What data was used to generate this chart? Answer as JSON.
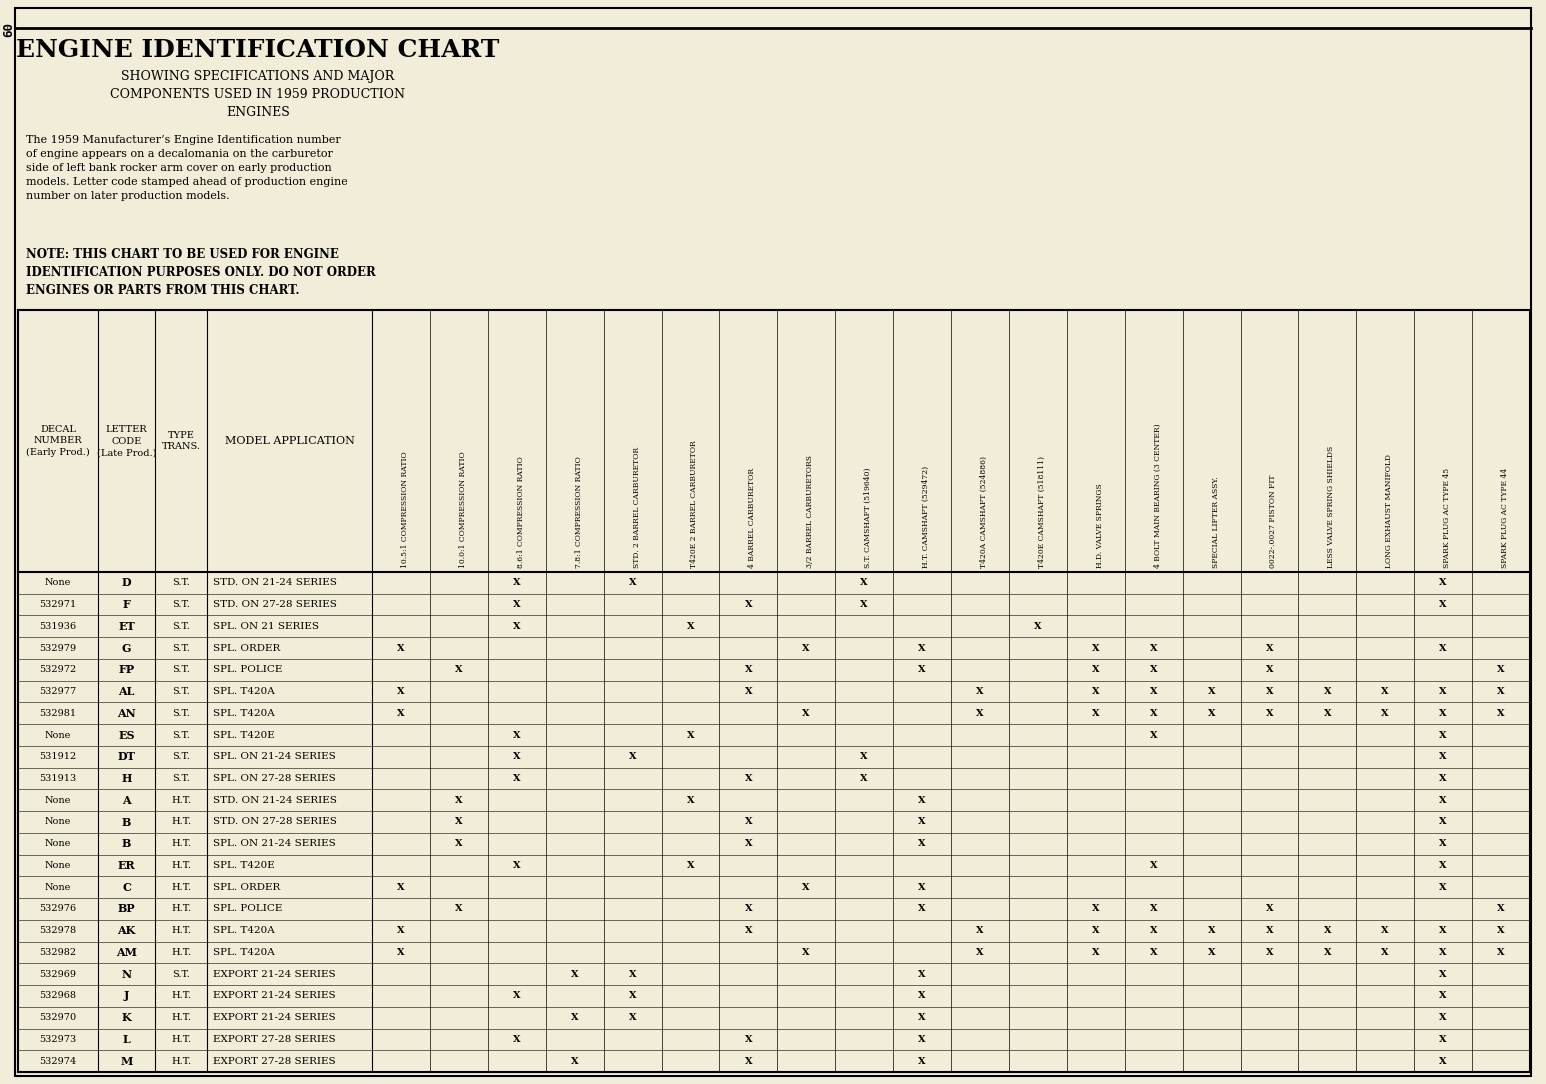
{
  "title": "ENGINE IDENTIFICATION CHART",
  "subtitle": "SHOWING SPECIFICATIONS AND MAJOR\nCOMPONENTS USED IN 1959 PRODUCTION\nENGINES",
  "body_text1": "The 1959 Manufacturer’s Engine Identification number\nof engine appears on a decalomania on the carburetor\nside of left bank rocker arm cover on early production\nmodels. Letter code stamped ahead of production engine\nnumber on later production models.",
  "body_text2": "NOTE: THIS CHART TO BE USED FOR ENGINE\nIDENTIFICATION PURPOSES ONLY. DO NOT ORDER\nENGINES OR PARTS FROM THIS CHART.",
  "col_headers": [
    "10.5:1 COMPRESSION RATIO",
    "10.0:1 COMPRESSION RATIO",
    "8.6:1 COMPRESSION RATIO",
    "7.8:1 COMPRESSION RATIO",
    "STD. 2 BARREL CARBURETOR",
    "T420E 2 BARREL CARBURETOR",
    "4 BARREL CARBURETOR",
    "3/2 BARREL CARBURETORS",
    "S.T. CAMSHAFT (519640)",
    "H.T. CAMSHAFT (529472)",
    "T420A CAMSHAFT (524886)",
    "T420E CAMSHAFT (518111)",
    "H.D. VALVE SPRINGS",
    "4 BOLT MAIN BEARING (3 CENTER)",
    "SPECIAL LIFTER ASSY.",
    "0022-.0027 PISTON FIT",
    "LESS VALVE SPRING SHIELDS",
    "LONG EXHAUST MANIFOLD",
    "SPARK PLUG AC TYPE 45",
    "SPARK PLUG AC TYPE 44"
  ],
  "rows": [
    [
      "None",
      "D",
      "S.T.",
      "STD. ON 21-24 SERIES",
      0,
      0,
      1,
      0,
      1,
      0,
      0,
      0,
      1,
      0,
      0,
      0,
      0,
      0,
      0,
      0,
      0,
      0,
      1,
      0
    ],
    [
      "532971",
      "F",
      "S.T.",
      "STD. ON 27-28 SERIES",
      0,
      0,
      1,
      0,
      0,
      0,
      1,
      0,
      1,
      0,
      0,
      0,
      0,
      0,
      0,
      0,
      0,
      0,
      1,
      0
    ],
    [
      "531936",
      "ET",
      "S.T.",
      "SPL. ON 21 SERIES",
      0,
      0,
      1,
      0,
      0,
      1,
      0,
      0,
      0,
      0,
      0,
      1,
      0,
      0,
      0,
      0,
      0,
      0,
      0,
      0
    ],
    [
      "532979",
      "G",
      "S.T.",
      "SPL. ORDER",
      1,
      0,
      0,
      0,
      0,
      0,
      0,
      1,
      0,
      1,
      0,
      0,
      1,
      1,
      0,
      1,
      0,
      0,
      1,
      0
    ],
    [
      "532972",
      "FP",
      "S.T.",
      "SPL. POLICE",
      0,
      1,
      0,
      0,
      0,
      0,
      1,
      0,
      0,
      1,
      0,
      0,
      1,
      1,
      0,
      1,
      0,
      0,
      0,
      1
    ],
    [
      "532977",
      "AL",
      "S.T.",
      "SPL. T420A",
      1,
      0,
      0,
      0,
      0,
      0,
      1,
      0,
      0,
      0,
      1,
      0,
      1,
      1,
      1,
      1,
      1,
      1,
      1,
      1
    ],
    [
      "532981",
      "AN",
      "S.T.",
      "SPL. T420A",
      1,
      0,
      0,
      0,
      0,
      0,
      0,
      1,
      0,
      0,
      1,
      0,
      1,
      1,
      1,
      1,
      1,
      1,
      1,
      1
    ],
    [
      "None",
      "ES",
      "S.T.",
      "SPL. T420E",
      0,
      0,
      1,
      0,
      0,
      1,
      0,
      0,
      0,
      0,
      0,
      0,
      0,
      1,
      0,
      0,
      0,
      0,
      1,
      0
    ],
    [
      "531912",
      "DT",
      "S.T.",
      "SPL. ON 21-24 SERIES",
      0,
      0,
      1,
      0,
      1,
      0,
      0,
      0,
      1,
      0,
      0,
      0,
      0,
      0,
      0,
      0,
      0,
      0,
      1,
      0
    ],
    [
      "531913",
      "H",
      "S.T.",
      "SPL. ON 27-28 SERIES",
      0,
      0,
      1,
      0,
      0,
      0,
      1,
      0,
      1,
      0,
      0,
      0,
      0,
      0,
      0,
      0,
      0,
      0,
      1,
      0
    ],
    [
      "None",
      "A",
      "H.T.",
      "STD. ON 21-24 SERIES",
      0,
      1,
      0,
      0,
      0,
      1,
      0,
      0,
      0,
      1,
      0,
      0,
      0,
      0,
      0,
      0,
      0,
      0,
      1,
      0
    ],
    [
      "None",
      "B",
      "H.T.",
      "STD. ON 27-28 SERIES",
      0,
      1,
      0,
      0,
      0,
      0,
      1,
      0,
      0,
      1,
      0,
      0,
      0,
      0,
      0,
      0,
      0,
      0,
      1,
      0
    ],
    [
      "None",
      "B",
      "H.T.",
      "SPL. ON 21-24 SERIES",
      0,
      1,
      0,
      0,
      0,
      0,
      1,
      0,
      0,
      1,
      0,
      0,
      0,
      0,
      0,
      0,
      0,
      0,
      1,
      0
    ],
    [
      "None",
      "ER",
      "H.T.",
      "SPL. T420E",
      0,
      0,
      1,
      0,
      0,
      1,
      0,
      0,
      0,
      0,
      0,
      0,
      0,
      1,
      0,
      0,
      0,
      0,
      1,
      0
    ],
    [
      "None",
      "C",
      "H.T.",
      "SPL. ORDER",
      1,
      0,
      0,
      0,
      0,
      0,
      0,
      1,
      0,
      1,
      0,
      0,
      0,
      0,
      0,
      0,
      0,
      0,
      1,
      0
    ],
    [
      "532976",
      "BP",
      "H.T.",
      "SPL. POLICE",
      0,
      1,
      0,
      0,
      0,
      0,
      1,
      0,
      0,
      1,
      0,
      0,
      1,
      1,
      0,
      1,
      0,
      0,
      0,
      1
    ],
    [
      "532978",
      "AK",
      "H.T.",
      "SPL. T420A",
      1,
      0,
      0,
      0,
      0,
      0,
      1,
      0,
      0,
      0,
      1,
      0,
      1,
      1,
      1,
      1,
      1,
      1,
      1,
      1
    ],
    [
      "532982",
      "AM",
      "H.T.",
      "SPL. T420A",
      1,
      0,
      0,
      0,
      0,
      0,
      0,
      1,
      0,
      0,
      1,
      0,
      1,
      1,
      1,
      1,
      1,
      1,
      1,
      1
    ],
    [
      "532969",
      "N",
      "S.T.",
      "EXPORT 21-24 SERIES",
      0,
      0,
      0,
      1,
      1,
      0,
      0,
      0,
      0,
      1,
      0,
      0,
      0,
      0,
      0,
      0,
      0,
      0,
      1,
      0
    ],
    [
      "532968",
      "J",
      "H.T.",
      "EXPORT 21-24 SERIES",
      0,
      0,
      1,
      0,
      1,
      0,
      0,
      0,
      0,
      1,
      0,
      0,
      0,
      0,
      0,
      0,
      0,
      0,
      1,
      0
    ],
    [
      "532970",
      "K",
      "H.T.",
      "EXPORT 21-24 SERIES",
      0,
      0,
      0,
      1,
      1,
      0,
      0,
      0,
      0,
      1,
      0,
      0,
      0,
      0,
      0,
      0,
      0,
      0,
      1,
      0
    ],
    [
      "532973",
      "L",
      "H.T.",
      "EXPORT 27-28 SERIES",
      0,
      0,
      1,
      0,
      0,
      0,
      1,
      0,
      0,
      1,
      0,
      0,
      0,
      0,
      0,
      0,
      0,
      0,
      1,
      0
    ],
    [
      "532974",
      "M",
      "H.T.",
      "EXPORT 27-28 SERIES",
      0,
      0,
      0,
      1,
      0,
      0,
      1,
      0,
      0,
      1,
      0,
      0,
      0,
      0,
      0,
      0,
      0,
      0,
      1,
      0
    ]
  ],
  "bg_color": "#f2edd8",
  "page_num": "60"
}
